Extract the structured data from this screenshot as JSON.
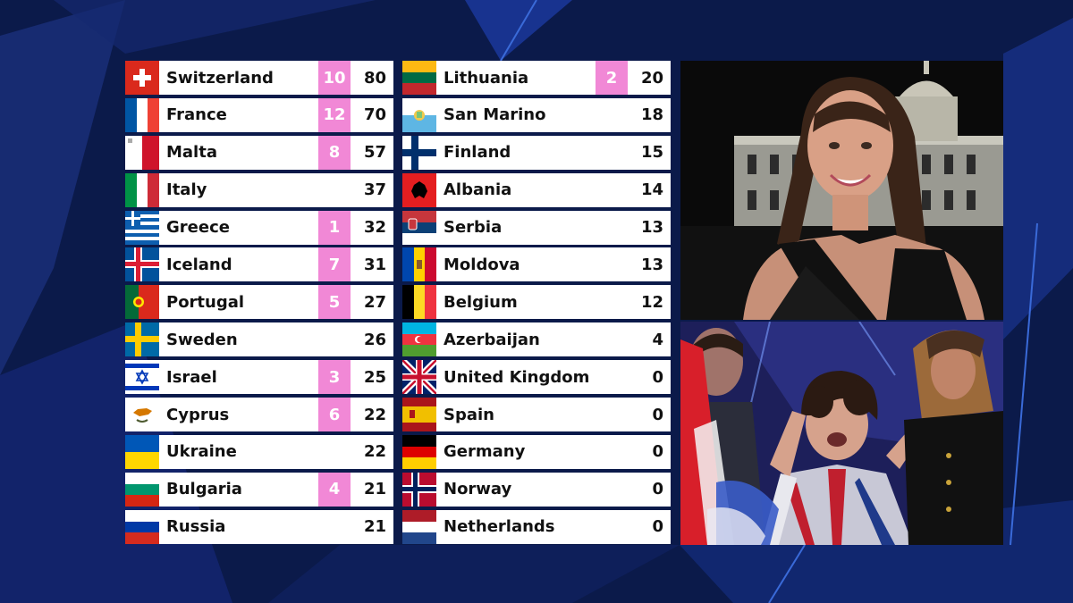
{
  "colors": {
    "background": "#0b1a4a",
    "points_highlight": "#f188d6",
    "row_bg": "#ffffff"
  },
  "left_column": [
    {
      "country": "Switzerland",
      "points": "10",
      "total": "80",
      "flag": "flag-switzerland"
    },
    {
      "country": "France",
      "points": "12",
      "total": "70",
      "flag": "flag-france"
    },
    {
      "country": "Malta",
      "points": "8",
      "total": "57",
      "flag": "flag-malta"
    },
    {
      "country": "Italy",
      "points": "",
      "total": "37",
      "flag": "flag-italy"
    },
    {
      "country": "Greece",
      "points": "1",
      "total": "32",
      "flag": "flag-greece"
    },
    {
      "country": "Iceland",
      "points": "7",
      "total": "31",
      "flag": "flag-iceland"
    },
    {
      "country": "Portugal",
      "points": "5",
      "total": "27",
      "flag": "flag-portugal"
    },
    {
      "country": "Sweden",
      "points": "",
      "total": "26",
      "flag": "flag-sweden"
    },
    {
      "country": "Israel",
      "points": "3",
      "total": "25",
      "flag": "flag-israel"
    },
    {
      "country": "Cyprus",
      "points": "6",
      "total": "22",
      "flag": "flag-cyprus"
    },
    {
      "country": "Ukraine",
      "points": "",
      "total": "22",
      "flag": "flag-ukraine"
    },
    {
      "country": "Bulgaria",
      "points": "4",
      "total": "21",
      "flag": "flag-bulgaria"
    },
    {
      "country": "Russia",
      "points": "",
      "total": "21",
      "flag": "flag-russia"
    }
  ],
  "right_column": [
    {
      "country": "Lithuania",
      "points": "2",
      "total": "20",
      "flag": "flag-lithuania"
    },
    {
      "country": "San Marino",
      "points": "",
      "total": "18",
      "flag": "flag-san-marino"
    },
    {
      "country": "Finland",
      "points": "",
      "total": "15",
      "flag": "flag-finland"
    },
    {
      "country": "Albania",
      "points": "",
      "total": "14",
      "flag": "flag-albania"
    },
    {
      "country": "Serbia",
      "points": "",
      "total": "13",
      "flag": "flag-serbia"
    },
    {
      "country": "Moldova",
      "points": "",
      "total": "13",
      "flag": "flag-moldova"
    },
    {
      "country": "Belgium",
      "points": "",
      "total": "12",
      "flag": "flag-belgium"
    },
    {
      "country": "Azerbaijan",
      "points": "",
      "total": "4",
      "flag": "flag-azerbaijan"
    },
    {
      "country": "United Kingdom",
      "points": "",
      "total": "0",
      "flag": "flag-united-kingdom"
    },
    {
      "country": "Spain",
      "points": "",
      "total": "0",
      "flag": "flag-spain"
    },
    {
      "country": "Germany",
      "points": "",
      "total": "0",
      "flag": "flag-germany"
    },
    {
      "country": "Norway",
      "points": "",
      "total": "0",
      "flag": "flag-norway"
    },
    {
      "country": "Netherlands",
      "points": "",
      "total": "0",
      "flag": "flag-netherlands"
    }
  ],
  "video_feeds": [
    {
      "name": "spokesperson-feed"
    },
    {
      "name": "green-room-feed"
    }
  ]
}
